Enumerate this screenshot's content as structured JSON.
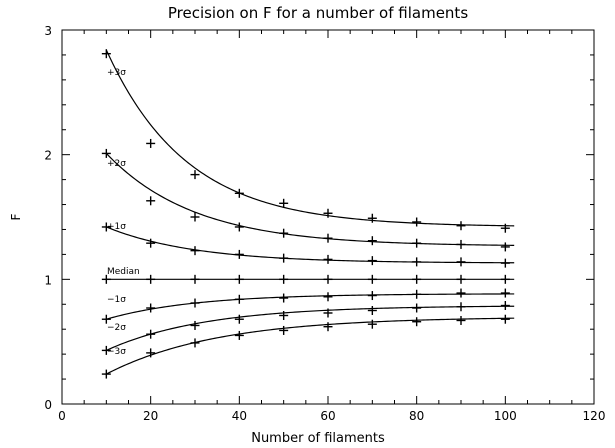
{
  "chart_data": {
    "type": "scatter",
    "title": "Precision on F for a number of filaments",
    "xlabel": "Number of filaments",
    "ylabel": "F",
    "xlim": [
      0,
      120
    ],
    "ylim": [
      0,
      3
    ],
    "xticks": [
      "0",
      "20",
      "40",
      "60",
      "80",
      "100",
      "120"
    ],
    "yticks": [
      "0",
      "1",
      "2",
      "3"
    ],
    "x": [
      10,
      20,
      30,
      40,
      50,
      60,
      70,
      80,
      90,
      100
    ],
    "series": [
      {
        "name": "+3σ",
        "label_text": "+3σ",
        "values": [
          2.81,
          2.09,
          1.84,
          1.69,
          1.61,
          1.53,
          1.49,
          1.46,
          1.43,
          1.41
        ],
        "fit": {
          "start": 2.84,
          "asymptote": 1.42,
          "rate": 0.055
        }
      },
      {
        "name": "+2σ",
        "label_text": "+2σ",
        "values": [
          2.01,
          1.63,
          1.5,
          1.42,
          1.37,
          1.33,
          1.31,
          1.29,
          1.28,
          1.26
        ],
        "fit": {
          "start": 2.01,
          "asymptote": 1.265,
          "rate": 0.05
        }
      },
      {
        "name": "+1σ",
        "label_text": "+1σ",
        "values": [
          1.42,
          1.29,
          1.23,
          1.2,
          1.17,
          1.16,
          1.15,
          1.14,
          1.14,
          1.13
        ],
        "fit": {
          "start": 1.42,
          "asymptote": 1.13,
          "rate": 0.05
        }
      },
      {
        "name": "Median",
        "label_text": "Median",
        "values": [
          1.0,
          1.0,
          1.0,
          1.0,
          1.0,
          1.0,
          1.0,
          1.0,
          1.0,
          1.0
        ],
        "fit": {
          "start": 1.0,
          "asymptote": 1.0,
          "rate": 0.05
        }
      },
      {
        "name": "-1σ",
        "label_text": "−1σ",
        "values": [
          0.68,
          0.77,
          0.81,
          0.84,
          0.85,
          0.86,
          0.87,
          0.88,
          0.89,
          0.89
        ],
        "fit": {
          "start": 0.68,
          "asymptote": 0.885,
          "rate": 0.05
        }
      },
      {
        "name": "-2σ",
        "label_text": "−2σ",
        "values": [
          0.43,
          0.56,
          0.63,
          0.68,
          0.71,
          0.73,
          0.75,
          0.77,
          0.78,
          0.79
        ],
        "fit": {
          "start": 0.43,
          "asymptote": 0.79,
          "rate": 0.045
        }
      },
      {
        "name": "-3σ",
        "label_text": "−3σ",
        "values": [
          0.24,
          0.41,
          0.49,
          0.55,
          0.59,
          0.62,
          0.64,
          0.66,
          0.67,
          0.68
        ],
        "fit": {
          "start": 0.24,
          "asymptote": 0.7,
          "rate": 0.04
        }
      }
    ]
  }
}
